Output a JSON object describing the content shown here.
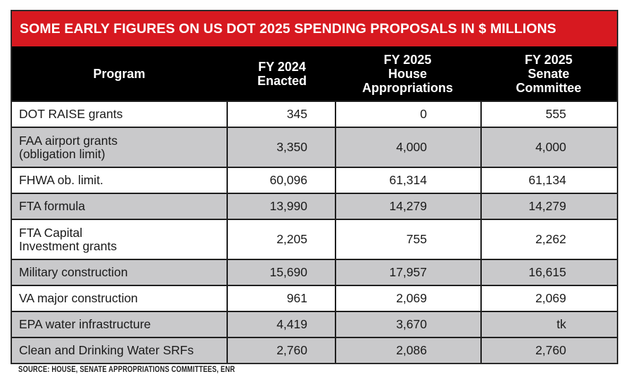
{
  "title": "SOME EARLY FIGURES ON US DOT 2025 SPENDING PROPOSALS IN $ MILLIONS",
  "colors": {
    "title_bar": "#d71920",
    "header_bg": "#000000",
    "row_gray": "#c9c9cb",
    "row_white": "#ffffff"
  },
  "columns": [
    "Program",
    "FY 2024\nEnacted",
    "FY 2025\nHouse\nAppropriations",
    "FY 2025\nSenate\nCommittee"
  ],
  "rows": [
    {
      "program": "DOT RAISE grants",
      "fy2024_enacted": "345",
      "fy2025_house": "0",
      "fy2025_senate": "555",
      "shade": "white"
    },
    {
      "program": "FAA airport grants\n(obligation limit)",
      "fy2024_enacted": "3,350",
      "fy2025_house": "4,000",
      "fy2025_senate": "4,000",
      "shade": "gray"
    },
    {
      "program": "FHWA ob. limit.",
      "fy2024_enacted": "60,096",
      "fy2025_house": "61,314",
      "fy2025_senate": "61,134",
      "shade": "white"
    },
    {
      "program": "FTA formula",
      "fy2024_enacted": "13,990",
      "fy2025_house": "14,279",
      "fy2025_senate": "14,279",
      "shade": "gray"
    },
    {
      "program": "FTA Capital\nInvestment grants",
      "fy2024_enacted": "2,205",
      "fy2025_house": "755",
      "fy2025_senate": "2,262",
      "shade": "white"
    },
    {
      "program": "Military construction",
      "fy2024_enacted": "15,690",
      "fy2025_house": "17,957",
      "fy2025_senate": "16,615",
      "shade": "gray"
    },
    {
      "program": "VA major construction",
      "fy2024_enacted": "961",
      "fy2025_house": "2,069",
      "fy2025_senate": "2,069",
      "shade": "white"
    },
    {
      "program": "EPA water infrastructure",
      "fy2024_enacted": "4,419",
      "fy2025_house": "3,670",
      "fy2025_senate": "tk",
      "shade": "gray"
    },
    {
      "program": "Clean and Drinking Water SRFs",
      "fy2024_enacted": "2,760",
      "fy2025_house": "2,086",
      "fy2025_senate": "2,760",
      "shade": "gray"
    }
  ],
  "source": "SOURCE: HOUSE, SENATE APPROPRIATIONS COMMITTEES, ENR"
}
